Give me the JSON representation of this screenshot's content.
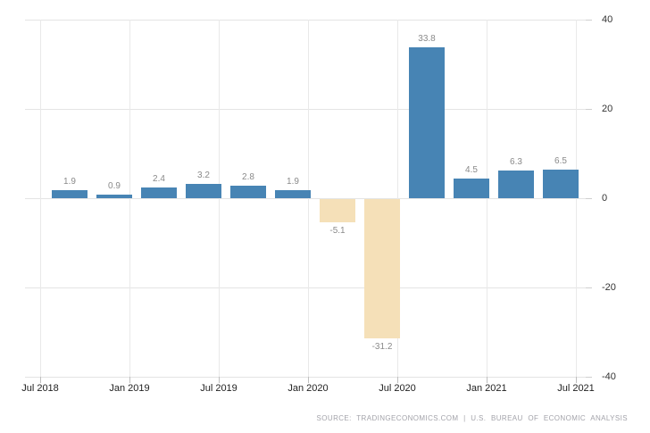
{
  "chart_data": {
    "type": "bar",
    "title": "",
    "x_tick_labels": [
      "Jul 2018",
      "Jan 2019",
      "Jul 2019",
      "Jan 2020",
      "Jul 2020",
      "Jan 2021",
      "Jul 2021"
    ],
    "values": [
      1.9,
      0.9,
      2.4,
      3.2,
      2.8,
      1.9,
      -5.1,
      -31.2,
      33.8,
      4.5,
      6.3,
      6.5
    ],
    "bar_value_labels": [
      "1.9",
      "0.9",
      "2.4",
      "3.2",
      "2.8",
      "1.9",
      "-5.1",
      "-31.2",
      "33.8",
      "4.5",
      "6.3",
      "6.5"
    ],
    "y_ticks": [
      40,
      20,
      0,
      -20,
      -40
    ],
    "y_tick_labels": [
      "40",
      "20",
      "0",
      "-20",
      "-40"
    ],
    "ylim": [
      -40,
      40
    ],
    "grid": true,
    "legend": "none",
    "colors": {
      "positive_bar": "#4784b4",
      "negative_bar": "#f5e0b8",
      "gridline": "#e4e4e4",
      "value_label": "#8a8a8a",
      "axis_label": "#333333",
      "source_text": "#a3a3aa"
    },
    "source_text": "SOURCE: TRADINGECONOMICS.COM | U.S. BUREAU OF ECONOMIC ANALYSIS"
  }
}
